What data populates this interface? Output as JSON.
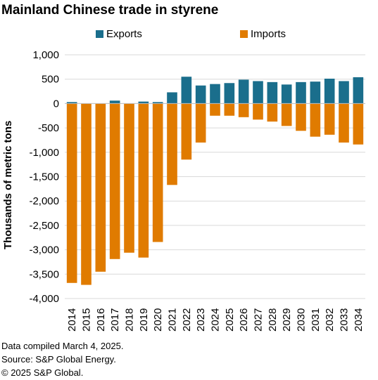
{
  "chart_data": {
    "type": "bar",
    "title": "Mainland Chinese trade in styrene",
    "ylabel": "Thousands  of metric tons",
    "xlabel": "",
    "ylim": [
      -4000,
      1000
    ],
    "yticks": [
      1000,
      500,
      0,
      -500,
      -1000,
      -1500,
      -2000,
      -2500,
      -3000,
      -3500,
      -4000
    ],
    "ytick_labels": [
      "1,000",
      "500",
      "0",
      "-500",
      "-1,000",
      "-1,500",
      "-2,000",
      "-2,500",
      "-3,000",
      "-3,500",
      "-4,000"
    ],
    "grid": true,
    "legend_position": "top",
    "categories": [
      "2014",
      "2015",
      "2016",
      "2017",
      "2018",
      "2019",
      "2020",
      "2021",
      "2022",
      "2023",
      "2024",
      "2025",
      "2026",
      "2027",
      "2028",
      "2029",
      "2030",
      "2031",
      "2032",
      "2033",
      "2034"
    ],
    "series": [
      {
        "name": "Exports",
        "color": "#1a6e8c",
        "values": [
          30,
          0,
          0,
          60,
          0,
          40,
          30,
          230,
          550,
          370,
          400,
          420,
          490,
          460,
          440,
          390,
          440,
          450,
          510,
          460,
          540
        ]
      },
      {
        "name": "Imports",
        "color": "#e07b00",
        "values": [
          -3680,
          -3720,
          -3450,
          -3190,
          -3060,
          -3160,
          -2840,
          -1670,
          -1150,
          -800,
          -250,
          -250,
          -280,
          -330,
          -370,
          -460,
          -560,
          -680,
          -640,
          -800,
          -840
        ]
      }
    ]
  },
  "footer": {
    "line1": "Data compiled March 4, 2025.",
    "line2": "Source: S&P Global Energy.",
    "line3": "© 2025 S&P Global."
  }
}
